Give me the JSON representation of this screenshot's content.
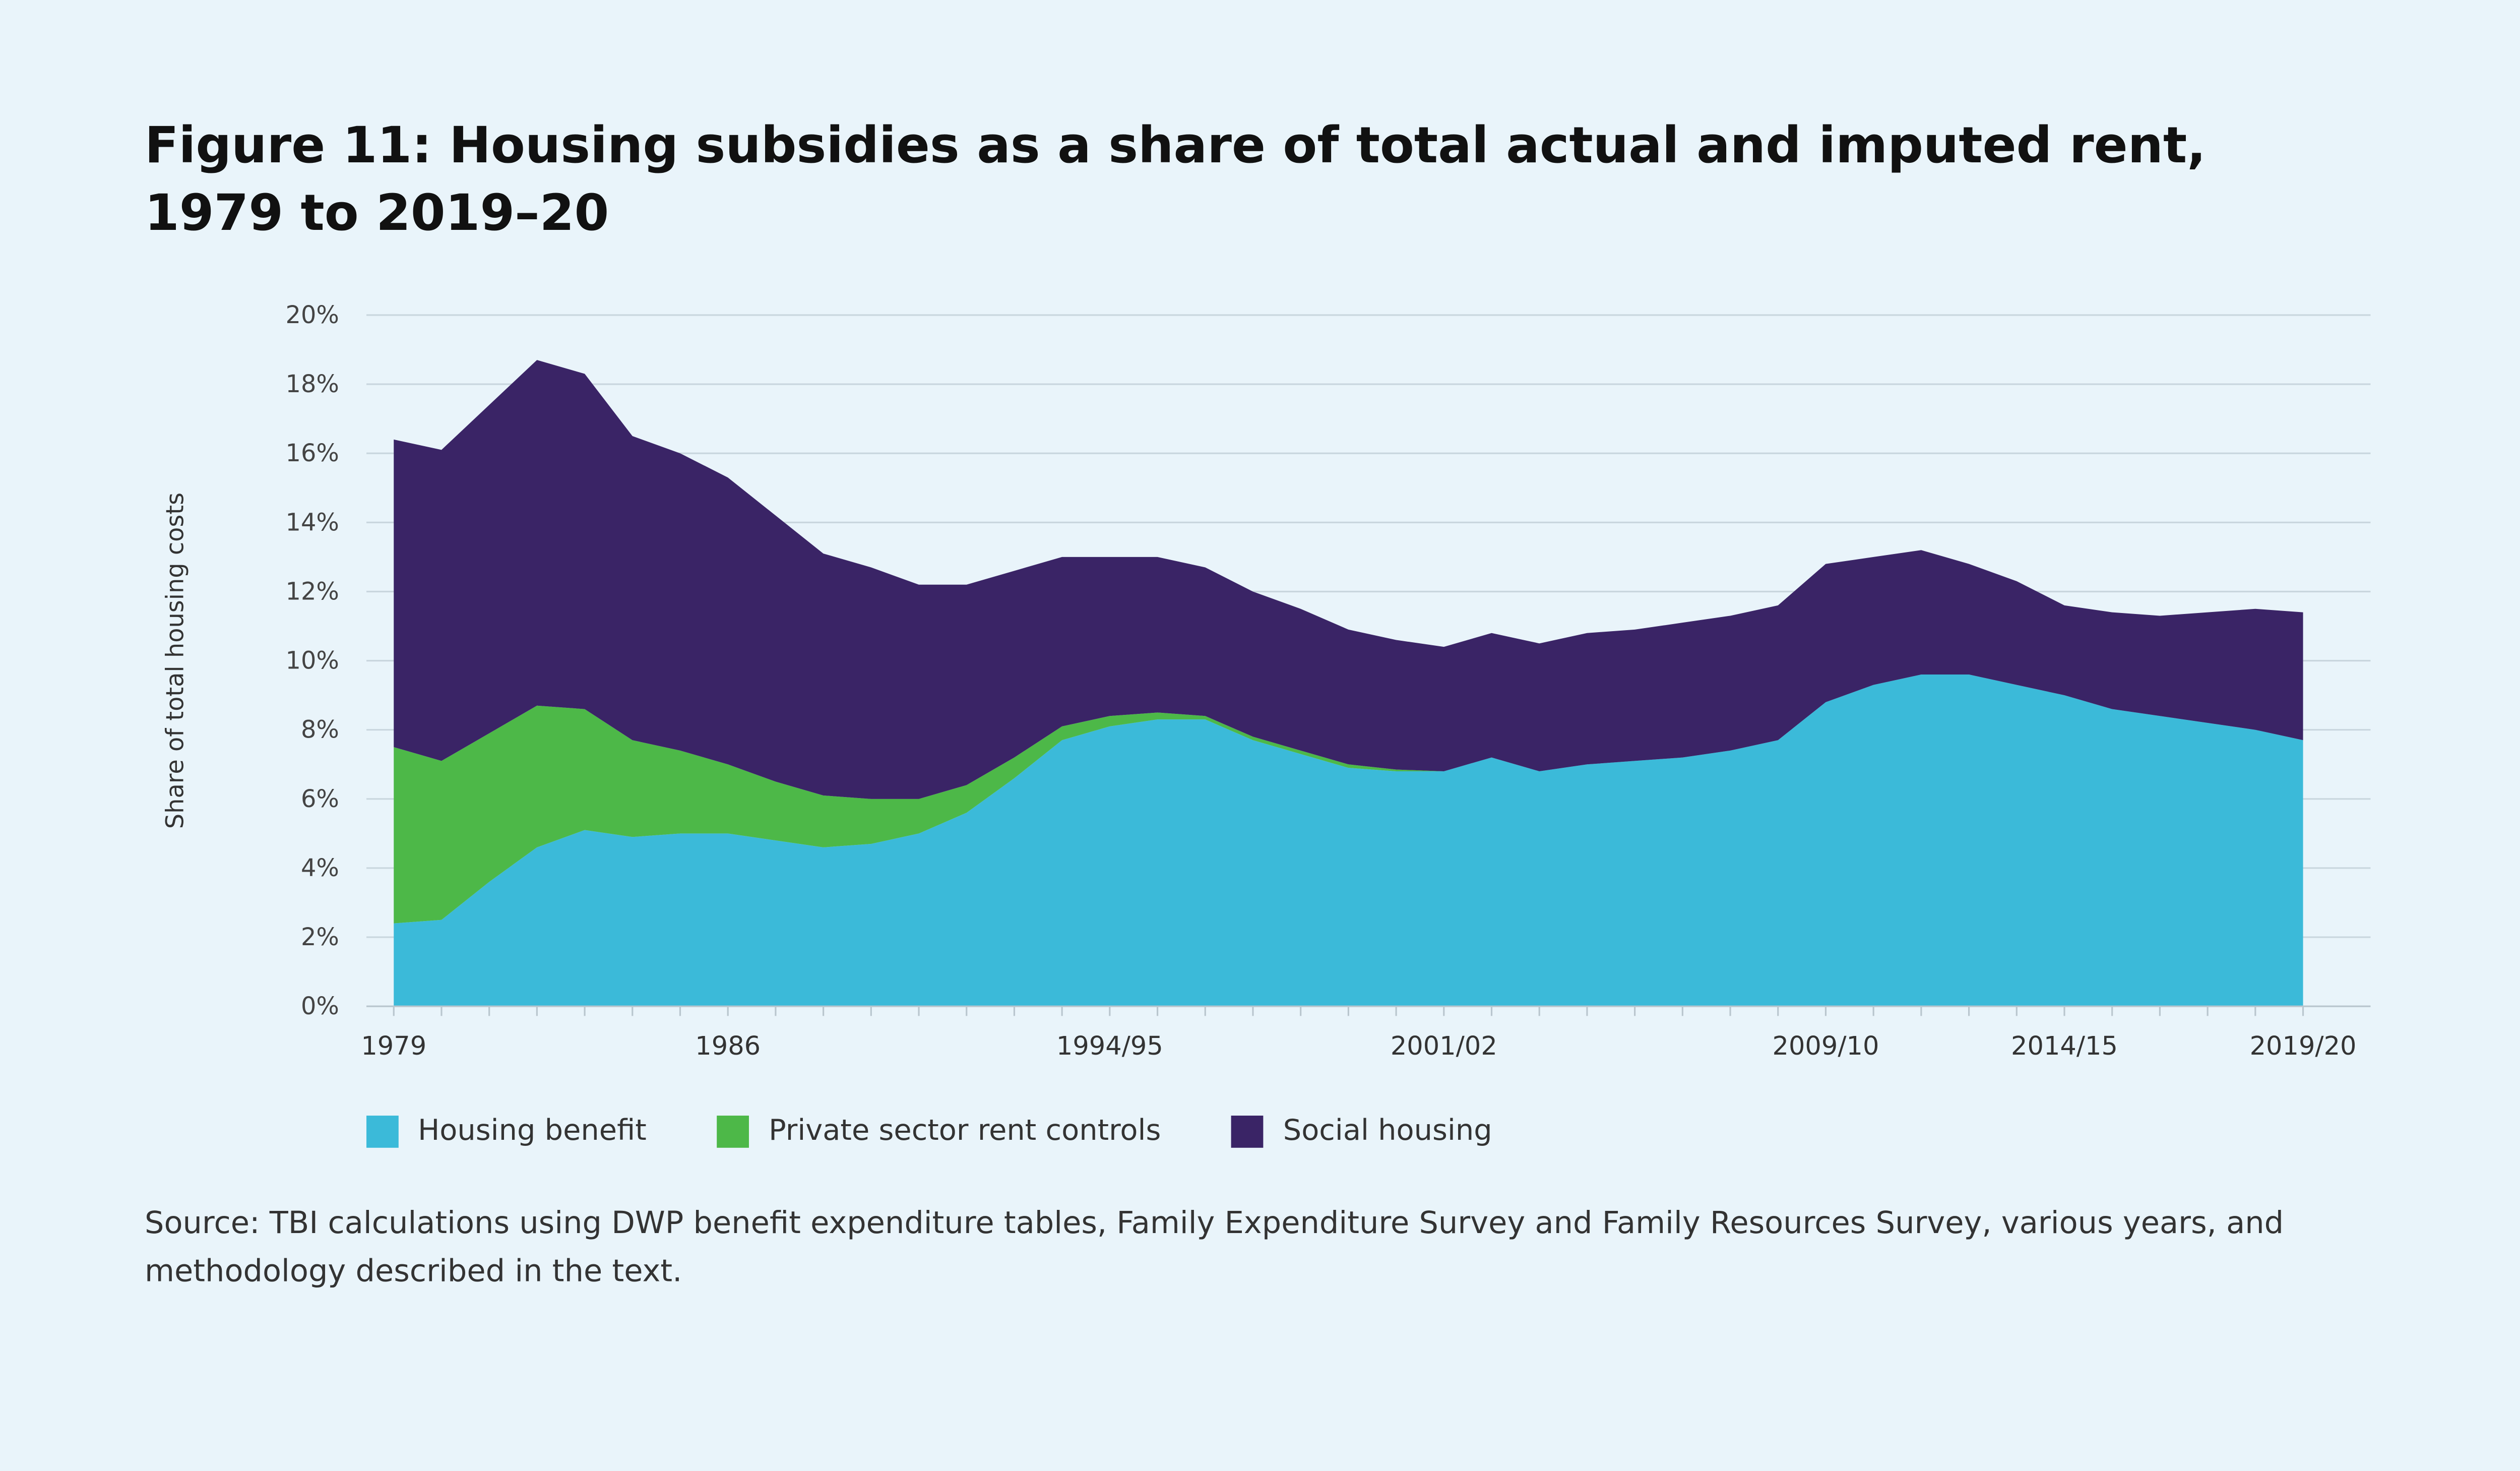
{
  "title": "Figure 11: Housing subsidies as a share of total actual and imputed rent, 1979 to 2019–20",
  "source": "Source: TBI calculations using DWP benefit expenditure tables, Family Expenditure Survey and Family Resources Survey, various years, and methodology described in the text.",
  "chart_data": {
    "type": "area",
    "stacked": true,
    "title": "Figure 11: Housing subsidies as a share of total actual and imputed rent, 1979 to 2019–20",
    "xlabel": "",
    "ylabel": "Share of total housing costs",
    "ylim": [
      0,
      20
    ],
    "yticks": [
      "0%",
      "2%",
      "4%",
      "6%",
      "8%",
      "10%",
      "12%",
      "14%",
      "16%",
      "18%",
      "20%"
    ],
    "grid": true,
    "legend_position": "bottom",
    "x": [
      "1979",
      "1980",
      "1981",
      "1982",
      "1983",
      "1984",
      "1985",
      "1986",
      "1987",
      "1988",
      "1989",
      "1990",
      "1991",
      "1992",
      "1993",
      "1994/95",
      "1995/96",
      "1996/97",
      "1997/98",
      "1998/99",
      "1999/00",
      "2000/01",
      "2001/02",
      "2002/03",
      "2003/04",
      "2004/05",
      "2005/06",
      "2006/07",
      "2007/08",
      "2008/09",
      "2009/10",
      "2010/11",
      "2011/12",
      "2012/13",
      "2013/14",
      "2014/15",
      "2015/16",
      "2016/17",
      "2017/18",
      "2018/19",
      "2019/20"
    ],
    "xtick_labels": [
      "1979",
      "1986",
      "1994/95",
      "2001/02",
      "2009/10",
      "2014/15",
      "2019/20"
    ],
    "series": [
      {
        "name": "Housing benefit",
        "color": "#3bbad9",
        "values": [
          2.4,
          2.5,
          3.6,
          4.6,
          5.1,
          4.9,
          5.0,
          5.0,
          4.8,
          4.6,
          4.7,
          5.0,
          5.6,
          6.6,
          7.7,
          8.1,
          8.3,
          8.3,
          7.7,
          7.3,
          6.9,
          6.8,
          6.8,
          7.2,
          6.8,
          7.0,
          7.1,
          7.2,
          7.4,
          7.7,
          8.8,
          9.3,
          9.6,
          9.6,
          9.3,
          9.0,
          8.6,
          8.4,
          8.2,
          8.0,
          7.7
        ]
      },
      {
        "name": "Private sector rent controls",
        "color": "#4db848",
        "values": [
          5.1,
          4.6,
          4.3,
          4.1,
          3.5,
          2.8,
          2.4,
          2.0,
          1.7,
          1.5,
          1.3,
          1.0,
          0.8,
          0.6,
          0.4,
          0.3,
          0.2,
          0.1,
          0.1,
          0.1,
          0.1,
          0.05,
          0,
          0,
          0,
          0,
          0,
          0,
          0,
          0,
          0,
          0,
          0,
          0,
          0,
          0,
          0,
          0,
          0,
          0,
          0
        ]
      },
      {
        "name": "Social housing",
        "color": "#3a2466",
        "values": [
          8.9,
          9.0,
          9.5,
          10.0,
          9.7,
          8.8,
          8.6,
          8.3,
          7.7,
          7.0,
          6.7,
          6.2,
          5.8,
          5.4,
          4.9,
          4.6,
          4.5,
          4.3,
          4.2,
          4.1,
          3.9,
          3.75,
          3.6,
          3.6,
          3.7,
          3.8,
          3.8,
          3.9,
          3.9,
          3.9,
          4.0,
          3.7,
          3.6,
          3.2,
          3.0,
          2.6,
          2.8,
          2.9,
          3.2,
          3.5,
          3.7
        ]
      }
    ]
  }
}
